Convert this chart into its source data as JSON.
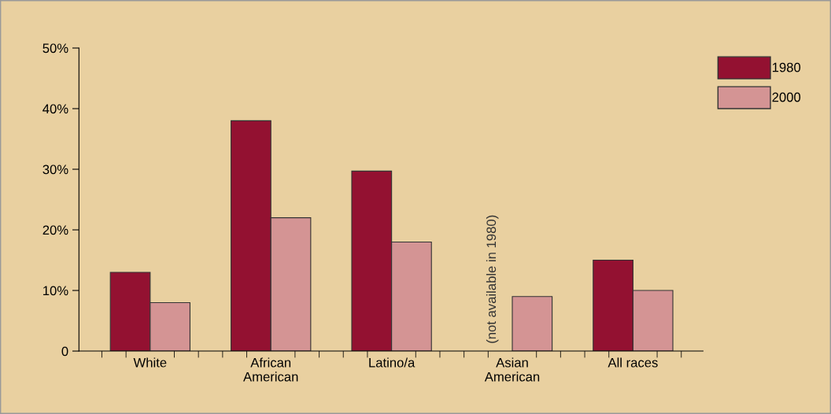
{
  "chart_data": {
    "type": "bar",
    "categories": [
      "White",
      "African\nAmerican",
      "Latino/a",
      "Asian\nAmerican",
      "All races"
    ],
    "series": [
      {
        "name": "1980",
        "color": "#931131",
        "values": [
          13,
          38,
          29.7,
          null,
          15
        ]
      },
      {
        "name": "2000",
        "color": "#d49494",
        "values": [
          8,
          22,
          18,
          9,
          10
        ]
      }
    ],
    "ylim": [
      0,
      50
    ],
    "yticks": [
      {
        "value": 0,
        "label": "0"
      },
      {
        "value": 10,
        "label": "10%"
      },
      {
        "value": 20,
        "label": "20%"
      },
      {
        "value": 30,
        "label": "30%"
      },
      {
        "value": 40,
        "label": "40%"
      },
      {
        "value": 50,
        "label": "50%"
      }
    ],
    "annotations": [
      "(not available in 1980)"
    ],
    "legend": "top right",
    "grid": false
  }
}
